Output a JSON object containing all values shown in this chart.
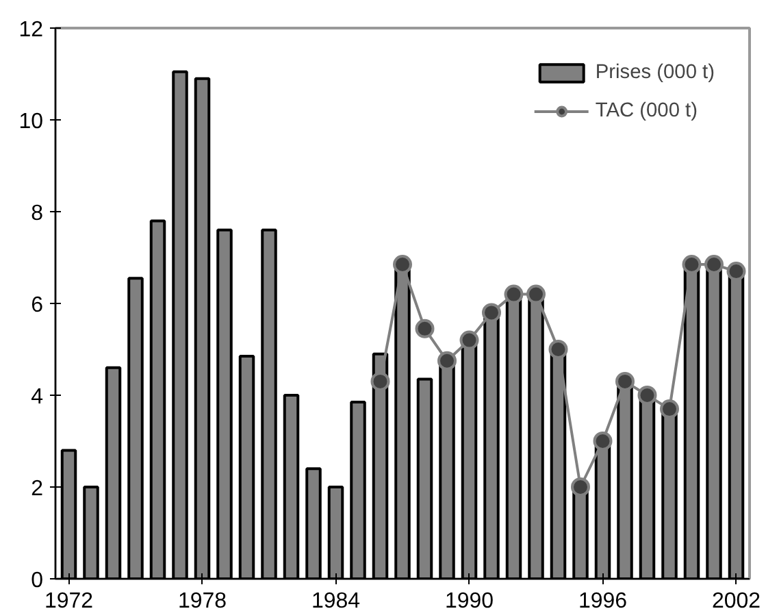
{
  "chart_data": {
    "type": "bar",
    "x": [
      1972,
      1973,
      1974,
      1975,
      1976,
      1977,
      1978,
      1979,
      1980,
      1981,
      1982,
      1983,
      1984,
      1985,
      1986,
      1987,
      1988,
      1989,
      1990,
      1991,
      1992,
      1993,
      1994,
      1995,
      1996,
      1997,
      1998,
      1999,
      2000,
      2001,
      2002
    ],
    "series": [
      {
        "name": "Prises (000 t)",
        "color": "#808080",
        "values": [
          2.8,
          2.0,
          4.6,
          6.55,
          7.8,
          11.05,
          10.9,
          7.6,
          4.85,
          7.6,
          4.0,
          2.4,
          2.0,
          3.85,
          4.9,
          6.85,
          4.35,
          4.7,
          5.1,
          5.7,
          6.2,
          6.2,
          5.0,
          2.0,
          2.9,
          4.3,
          4.0,
          3.6,
          6.8,
          6.85,
          6.7
        ]
      },
      {
        "name": "TAC (000 t)",
        "type": "line",
        "color": "#808080",
        "marker": "circle",
        "values": [
          null,
          null,
          null,
          null,
          null,
          null,
          null,
          null,
          null,
          null,
          null,
          null,
          null,
          null,
          4.3,
          6.85,
          5.45,
          4.75,
          5.2,
          5.8,
          6.2,
          6.2,
          5.0,
          2.0,
          3.0,
          4.3,
          4.0,
          3.7,
          6.85,
          6.85,
          6.7
        ]
      }
    ],
    "xlim": [
      1971.4,
      2002.6
    ],
    "xticks": [
      1972,
      1978,
      1984,
      1990,
      1996,
      2002
    ],
    "ylim": [
      0,
      12
    ],
    "yticks": [
      0,
      2,
      4,
      6,
      8,
      10,
      12
    ],
    "grid": false,
    "legend": "top right"
  }
}
